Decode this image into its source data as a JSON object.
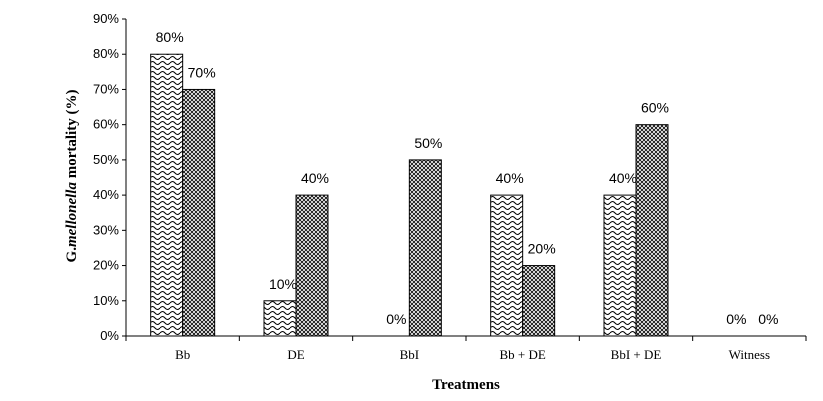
{
  "chart_data": {
    "type": "bar",
    "xlabel": "Treatmens",
    "ylabel_prefix": "G.",
    "ylabel_italic": "mellonella",
    "ylabel_suffix": " mortality (%)",
    "categories": [
      "Bb",
      "DE",
      "BbI",
      "Bb + DE",
      "BbI + DE",
      "Witness"
    ],
    "series": [
      {
        "pattern": "waves",
        "values": [
          80,
          10,
          0,
          40,
          40,
          0
        ]
      },
      {
        "pattern": "crosshatch",
        "values": [
          70,
          40,
          50,
          20,
          60,
          0
        ]
      }
    ],
    "data_labels": [
      [
        "80%",
        "10%",
        "0%",
        "40%",
        "40%",
        "0%"
      ],
      [
        "70%",
        "40%",
        "50%",
        "20%",
        "60%",
        "0%"
      ]
    ],
    "ylim": [
      0,
      90
    ],
    "yticks": [
      0,
      10,
      20,
      30,
      40,
      50,
      60,
      70,
      80,
      90
    ],
    "ytick_labels": [
      "0%",
      "10%",
      "20%",
      "30%",
      "40%",
      "50%",
      "60%",
      "70%",
      "80%",
      "90%"
    ],
    "grid": false,
    "legend": "none"
  }
}
